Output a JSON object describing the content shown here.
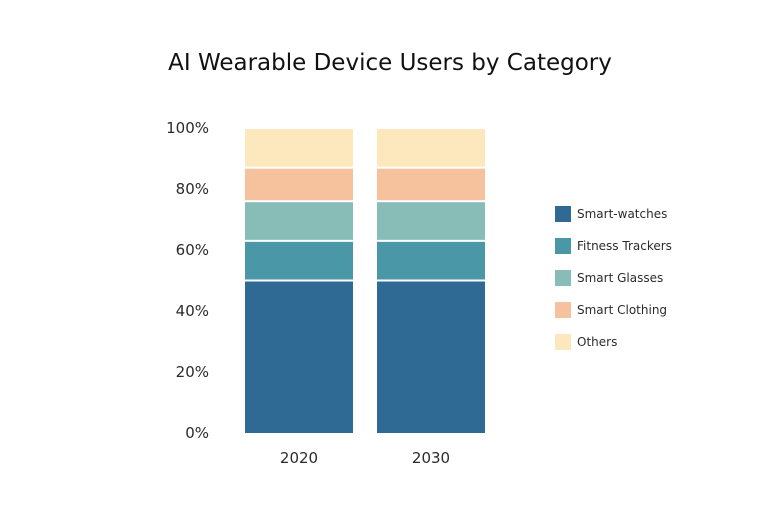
{
  "chart_data": {
    "type": "bar",
    "stacked": true,
    "title": "AI Wearable Device Users by Category",
    "xlabel": "",
    "ylabel": "",
    "ylim": [
      0,
      100
    ],
    "y_ticks": [
      "0%",
      "20%",
      "40%",
      "60%",
      "80%",
      "100%"
    ],
    "grid": false,
    "legend_position": "right",
    "categories": [
      "2020",
      "2030"
    ],
    "series": [
      {
        "name": "Smart-watches",
        "color": "#2e6a94",
        "values": [
          50,
          50
        ]
      },
      {
        "name": "Fitness Trackers",
        "color": "#4a97a8",
        "values": [
          13,
          13
        ]
      },
      {
        "name": "Smart Glasses",
        "color": "#88bcb7",
        "values": [
          13,
          13
        ]
      },
      {
        "name": "Smart Clothing",
        "color": "#f6c29e",
        "values": [
          11,
          11
        ]
      },
      {
        "name": "Others",
        "color": "#fde8bd",
        "values": [
          13,
          13
        ]
      }
    ]
  }
}
